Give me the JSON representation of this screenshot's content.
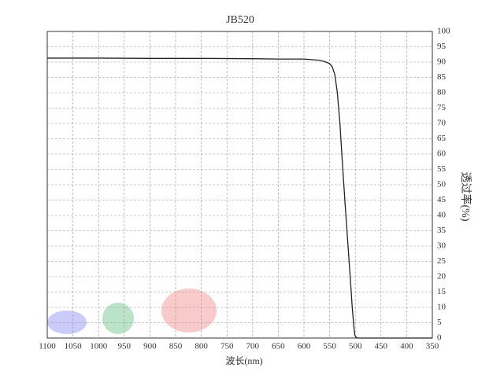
{
  "chart_data": {
    "type": "line",
    "title": "JB520",
    "x_label": "波长(nm)",
    "y_label": "透过率(%)",
    "x": [
      1100,
      1000,
      900,
      800,
      700,
      650,
      600,
      570,
      560,
      550,
      545,
      540,
      535,
      530,
      527,
      524,
      520,
      515,
      510,
      506,
      503,
      501,
      499,
      495,
      450,
      400,
      350
    ],
    "series": [
      {
        "name": "JB520",
        "color": "#222222",
        "values": [
          91.3,
          91.3,
          91.2,
          91.2,
          91.1,
          91.0,
          91.0,
          90.6,
          90.2,
          89.5,
          88.5,
          86,
          80,
          70,
          62,
          54,
          44,
          32,
          20,
          10,
          4,
          1,
          0.3,
          0,
          0,
          0,
          0
        ]
      }
    ],
    "xlim": [
      1100,
      350
    ],
    "xticks": [
      1100,
      1050,
      1000,
      950,
      900,
      850,
      800,
      750,
      700,
      650,
      600,
      550,
      500,
      450,
      400,
      350
    ],
    "ylim": [
      0,
      100
    ],
    "yticks": [
      0,
      5,
      10,
      15,
      20,
      25,
      30,
      35,
      40,
      45,
      50,
      55,
      60,
      65,
      70,
      75,
      80,
      85,
      90,
      95,
      100
    ],
    "grid": true
  }
}
